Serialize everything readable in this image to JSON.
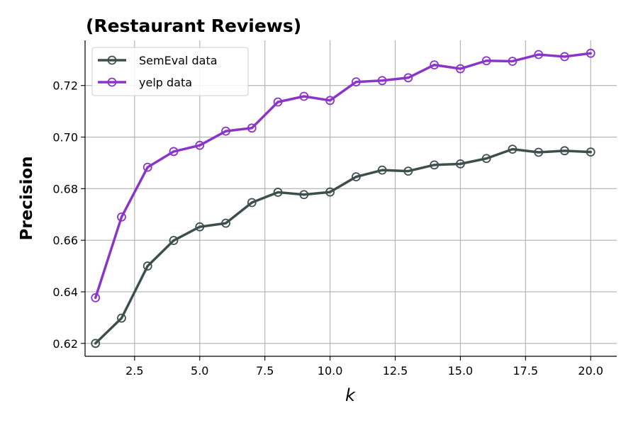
{
  "chart_data": {
    "type": "line",
    "title": "(Restaurant Reviews)",
    "xlabel": "k",
    "ylabel": "Precision",
    "xlim": [
      0.6,
      21.0
    ],
    "ylim": [
      0.615,
      0.7375
    ],
    "x_ticks": [
      2.5,
      5.0,
      7.5,
      10.0,
      12.5,
      15.0,
      17.5,
      20.0
    ],
    "x_tick_labels": [
      "2.5",
      "5.0",
      "7.5",
      "10.0",
      "12.5",
      "15.0",
      "17.5",
      "20.0"
    ],
    "y_ticks": [
      0.62,
      0.64,
      0.66,
      0.68,
      0.7,
      0.72
    ],
    "y_tick_labels": [
      "0.62",
      "0.64",
      "0.66",
      "0.68",
      "0.70",
      "0.72"
    ],
    "grid": true,
    "legend_position": "top-left",
    "x": [
      1,
      2,
      3,
      4,
      5,
      6,
      7,
      8,
      9,
      10,
      11,
      12,
      13,
      14,
      15,
      16,
      17,
      18,
      19,
      20
    ],
    "series": [
      {
        "name": "SemEval data",
        "color": "#3d4f4d",
        "values": [
          0.62,
          0.6298,
          0.65,
          0.6599,
          0.6652,
          0.6666,
          0.6746,
          0.6786,
          0.6777,
          0.6787,
          0.6846,
          0.6872,
          0.6868,
          0.6892,
          0.6896,
          0.6917,
          0.6953,
          0.6941,
          0.6947,
          0.6942
        ]
      },
      {
        "name": "yelp data",
        "color": "#8a35c8",
        "values": [
          0.6377,
          0.669,
          0.6883,
          0.6944,
          0.6968,
          0.7023,
          0.7035,
          0.7136,
          0.7158,
          0.7142,
          0.7214,
          0.7219,
          0.723,
          0.728,
          0.7265,
          0.7296,
          0.7294,
          0.732,
          0.7312,
          0.7325
        ]
      }
    ]
  }
}
